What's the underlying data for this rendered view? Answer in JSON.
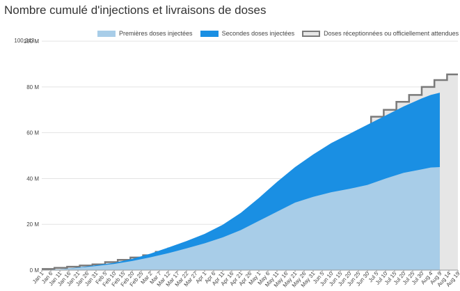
{
  "title": "Nombre cumulé d'injections et livraisons de doses",
  "chart_data": {
    "type": "area",
    "title": "Nombre cumulé d'injections et livraisons de doses",
    "ylim": [
      0,
      100.343
    ],
    "y_ticks": [
      {
        "value": 0,
        "label": "0 M"
      },
      {
        "value": 20,
        "label": "20 M"
      },
      {
        "value": 40,
        "label": "40 M"
      },
      {
        "value": 60,
        "label": "60 M"
      },
      {
        "value": 80,
        "label": "80 M"
      },
      {
        "value": 100,
        "label": "100 M"
      },
      {
        "value": 100.343,
        "label": "100.343..."
      }
    ],
    "x_ticks": [
      "Jan 1",
      "Jan 6",
      "Jan 11",
      "Jan 16",
      "Jan 21",
      "Jan 26",
      "Jan 31",
      "Feb 5",
      "Feb 10",
      "Feb 15",
      "Feb 20",
      "Feb 25",
      "Mar 2",
      "Mar 7",
      "Mar 12",
      "Mar 17",
      "Mar 22",
      "Mar 27",
      "Apr 1",
      "Apr 6",
      "Apr 11",
      "Apr 16",
      "Apr 21",
      "Apr 26",
      "May 1",
      "May 6",
      "May 11",
      "May 16",
      "May 21",
      "May 26",
      "May 31",
      "Jun 5",
      "Jun 10",
      "Jun 15",
      "Jun 20",
      "Jun 25",
      "Jun 30",
      "Jul 5",
      "Jul 10",
      "Jul 15",
      "Jul 20",
      "Jul 25",
      "Jul 30",
      "Aug 4",
      "Aug 9",
      "Aug 14",
      "Aug 19"
    ],
    "x_unit": "day index from Jan 1",
    "legend_position": "top-right",
    "grid": true,
    "series": [
      {
        "name": "Premières doses injectées",
        "color": "#a8cde8",
        "x": [
          0,
          10,
          20,
          30,
          40,
          50,
          60,
          70,
          80,
          90,
          100,
          110,
          120,
          130,
          140,
          150,
          160,
          170,
          180,
          190,
          200,
          210,
          215,
          220
        ],
        "values": [
          0,
          0.3,
          1,
          1.8,
          2.7,
          4,
          5.6,
          7.4,
          9.5,
          11.7,
          14.3,
          17.5,
          21.5,
          25.5,
          29.5,
          32,
          34,
          35.5,
          37.2,
          40,
          42.5,
          44,
          44.8,
          45
        ]
      },
      {
        "name": "Secondes doses injectées",
        "color": "#1a8fe3",
        "x": [
          0,
          10,
          20,
          30,
          40,
          50,
          60,
          70,
          80,
          90,
          100,
          110,
          120,
          130,
          140,
          150,
          160,
          170,
          180,
          190,
          200,
          210,
          215,
          220
        ],
        "values": [
          0,
          0.32,
          1.15,
          2.15,
          3.2,
          4.9,
          7.2,
          9.9,
          12.7,
          15.8,
          19.8,
          25,
          31.5,
          38.5,
          45,
          50.5,
          55.5,
          59.5,
          63.5,
          67.5,
          71.5,
          75,
          76.5,
          77.5
        ]
      },
      {
        "name": "Doses réceptionnées ou officiellement attendues",
        "color": "#e6e6e6",
        "stroke": "#7a7a7a",
        "step": true,
        "x": [
          0,
          7,
          14,
          21,
          28,
          35,
          42,
          49,
          56,
          63,
          70,
          77,
          84,
          91,
          98,
          105,
          112,
          119,
          126,
          133,
          140,
          147,
          154,
          161,
          168,
          175,
          182,
          189,
          196,
          203,
          210,
          217,
          224
        ],
        "values": [
          0.5,
          1,
          1.5,
          2,
          2.5,
          3.5,
          4.5,
          5.5,
          6.5,
          8,
          9.5,
          11,
          12.5,
          14,
          17.5,
          20.5,
          23,
          25.5,
          31,
          34,
          37.5,
          41,
          47,
          52,
          56.5,
          61,
          67,
          70,
          73.5,
          76.5,
          80,
          83,
          85.5
        ]
      }
    ]
  }
}
